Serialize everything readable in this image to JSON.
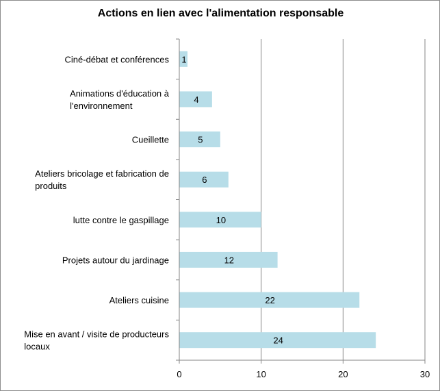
{
  "chart_data": {
    "type": "bar",
    "orientation": "horizontal",
    "title": "Actions en lien avec l'alimentation responsable",
    "xlabel": "",
    "ylabel": "",
    "xlim": [
      0,
      30
    ],
    "x_ticks": [
      0,
      10,
      20,
      30
    ],
    "grid": "vertical-major",
    "legend": "none",
    "categories": [
      [
        "Ciné-débat et conférences"
      ],
      [
        "Animations d'éducation à",
        "l'environnement"
      ],
      [
        "Cueillette"
      ],
      [
        "Ateliers bricolage et fabrication de",
        "produits"
      ],
      [
        "lutte contre le gaspillage"
      ],
      [
        "Projets autour du jardinage"
      ],
      [
        "Ateliers cuisine"
      ],
      [
        "Mise en avant / visite de producteurs",
        "locaux"
      ]
    ],
    "values": [
      1,
      4,
      5,
      6,
      10,
      12,
      22,
      24
    ],
    "colors": {
      "bar": "#b7dde8",
      "gridline": "#868686",
      "axis": "#868686",
      "text": "#000000"
    }
  }
}
